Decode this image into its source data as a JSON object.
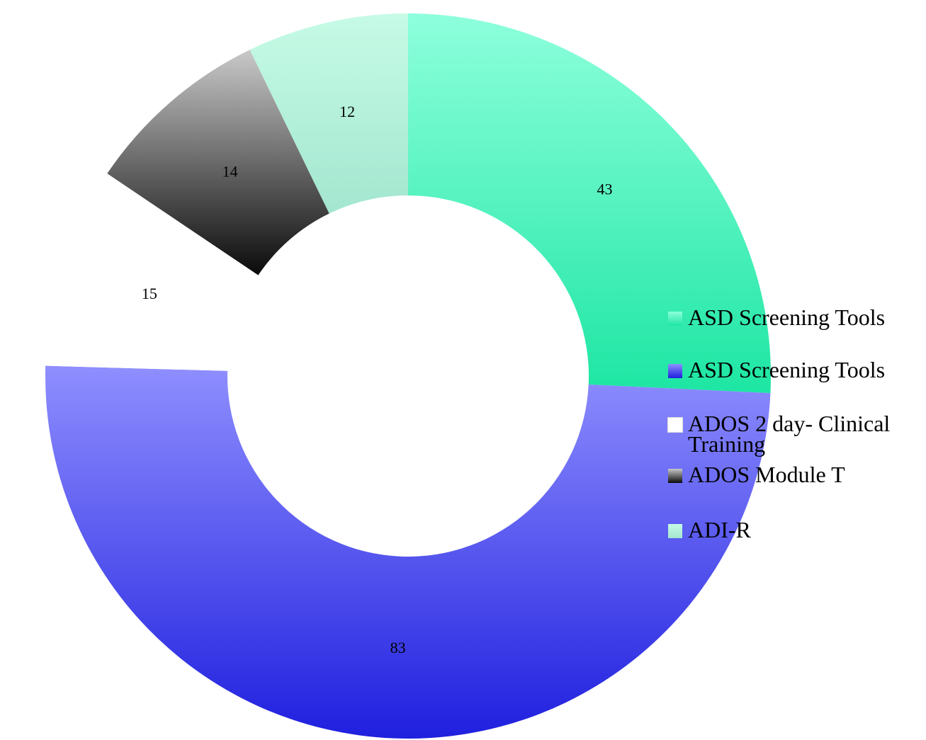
{
  "chart_data": {
    "type": "pie",
    "variant": "donut",
    "title": "",
    "legend_position": "right",
    "slices": [
      {
        "label": "ASD Screening Tools",
        "value": 43,
        "color_top": "#8effdc",
        "color_bottom": "#1de6a3"
      },
      {
        "label": "ASD Screening Tools",
        "value": 83,
        "color_top": "#8f8fff",
        "color_bottom": "#1f1fdf"
      },
      {
        "label": "ADOS 2 day- Clinical Training",
        "value": 15,
        "color_top": "#ffffff",
        "color_bottom": "#ffffff"
      },
      {
        "label": "ADOS Module T",
        "value": 14,
        "color_top": "#c9c9c9",
        "color_bottom": "#0a0a0a"
      },
      {
        "label": "ADI-R",
        "value": 12,
        "color_top": "#c6fbe6",
        "color_bottom": "#a3e6cf"
      }
    ]
  }
}
